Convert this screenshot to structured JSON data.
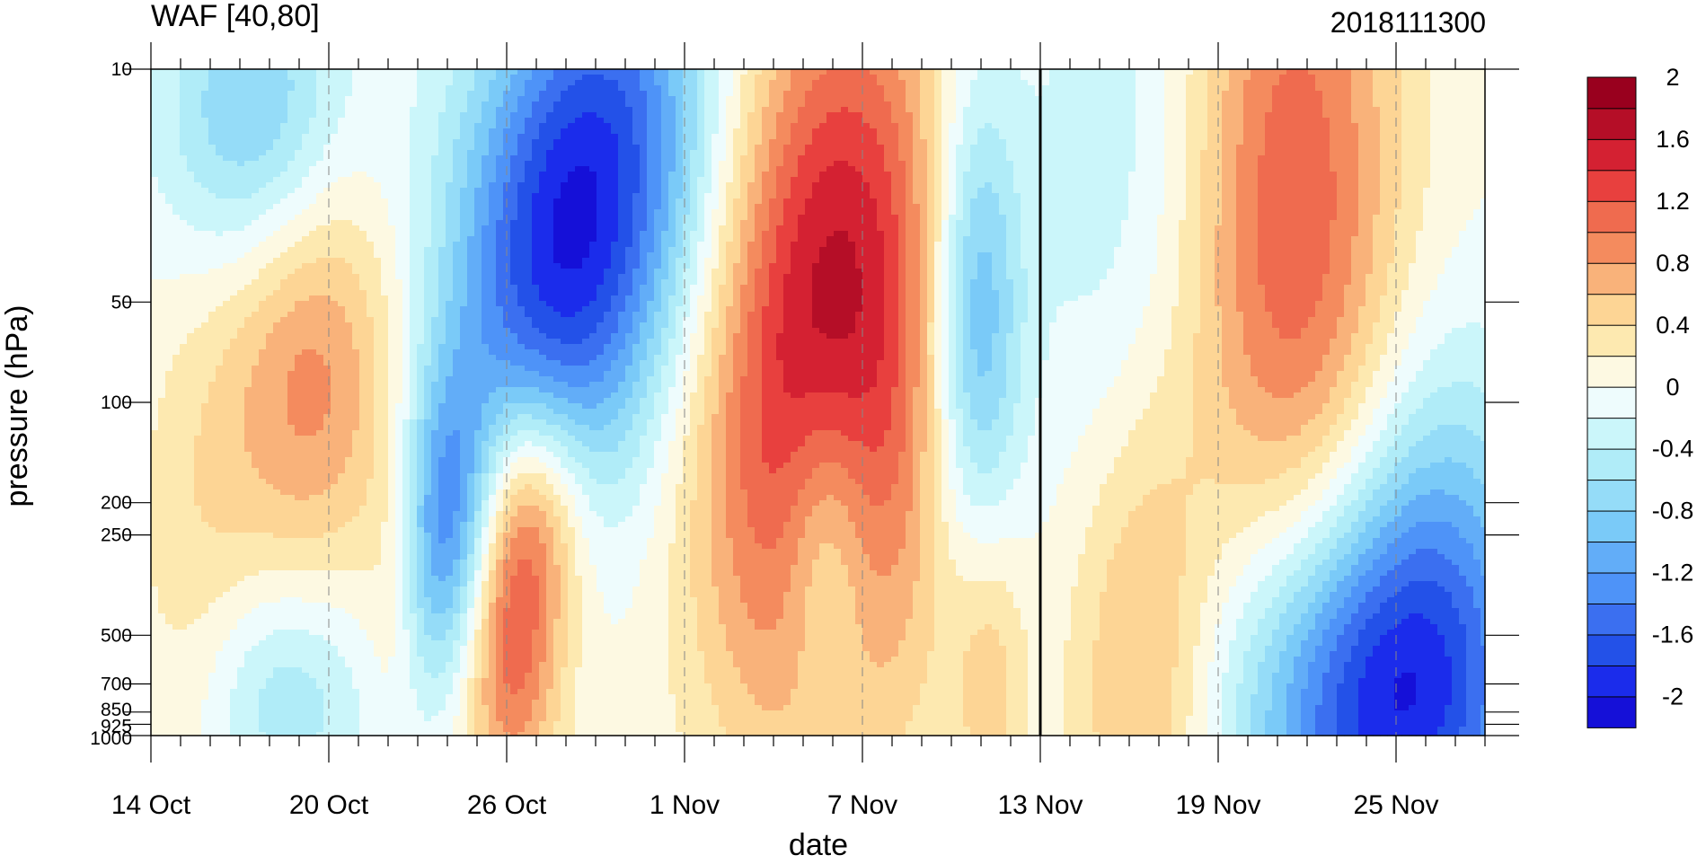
{
  "chart_data": {
    "type": "heatmap",
    "title_left": "WAF [40,80]",
    "title_right": "2018111300",
    "xlabel": "date",
    "ylabel": "pressure (hPa)",
    "x_ticks": [
      {
        "day": 0,
        "label": "14 Oct"
      },
      {
        "day": 6,
        "label": "20 Oct"
      },
      {
        "day": 12,
        "label": "26 Oct"
      },
      {
        "day": 18,
        "label": "1 Nov"
      },
      {
        "day": 24,
        "label": "7 Nov"
      },
      {
        "day": 30,
        "label": "13 Nov"
      },
      {
        "day": 36,
        "label": "19 Nov"
      },
      {
        "day": 42,
        "label": "25 Nov"
      }
    ],
    "x_range_days": [
      0,
      45
    ],
    "y_ticks": [
      {
        "p": 10,
        "label": "10"
      },
      {
        "p": 50,
        "label": "50"
      },
      {
        "p": 100,
        "label": "100"
      },
      {
        "p": 200,
        "label": "200"
      },
      {
        "p": 250,
        "label": "250"
      },
      {
        "p": 500,
        "label": "500"
      },
      {
        "p": 700,
        "label": "700"
      },
      {
        "p": 850,
        "label": "850"
      },
      {
        "p": 925,
        "label": "925"
      },
      {
        "p": 1000,
        "label": "1000"
      }
    ],
    "y_range": [
      1000,
      10
    ],
    "y_scale": "log",
    "vertical_marker_day": 30,
    "colorbar": {
      "colors": [
        "#1510d8",
        "#1b2ceb",
        "#2351e8",
        "#3b6ff0",
        "#4e93f8",
        "#62adf8",
        "#7acaf8",
        "#95dcf8",
        "#b0ecf8",
        "#cbf6fa",
        "#eefcfd",
        "#fdf9e2",
        "#fde9b0",
        "#fdd595",
        "#f9b27a",
        "#f48b5e",
        "#ef6b4f",
        "#e8403e",
        "#d42132",
        "#b50e27",
        "#99001e"
      ],
      "labels": [
        {
          "level": 2,
          "label": "2"
        },
        {
          "level": 1.6,
          "label": "1.6"
        },
        {
          "level": 1.2,
          "label": "1.2"
        },
        {
          "level": 0.8,
          "label": "0.8"
        },
        {
          "level": 0.4,
          "label": "0.4"
        },
        {
          "level": 0,
          "label": "0"
        },
        {
          "level": -0.4,
          "label": "-0.4"
        },
        {
          "level": -0.8,
          "label": "-0.8"
        },
        {
          "level": -1.2,
          "label": "-1.2"
        },
        {
          "level": -1.6,
          "label": "-1.6"
        },
        {
          "level": -2,
          "label": "-2"
        }
      ],
      "range": [
        -2.2,
        2.2
      ],
      "step": 0.2
    },
    "features": [
      {
        "day": 1.5,
        "p": 300,
        "v": 0.3,
        "sday": 1.6,
        "sp": 0.55
      },
      {
        "day": 5.4,
        "p": 80,
        "v": 0.9,
        "sday": 2.2,
        "sp": 0.45
      },
      {
        "day": 3.5,
        "p": 14,
        "v": -0.9,
        "sday": 2.2,
        "sp": 0.35
      },
      {
        "day": 4.5,
        "p": 760,
        "v": -0.6,
        "sday": 2.0,
        "sp": 0.25
      },
      {
        "day": 8.2,
        "p": 350,
        "v": 0.3,
        "sday": 0.7,
        "sp": 0.35
      },
      {
        "day": 10.1,
        "p": 250,
        "v": -1.4,
        "sday": 1.2,
        "sp": 0.35
      },
      {
        "day": 12.0,
        "p": 500,
        "v": 1.3,
        "sday": 1.3,
        "sp": 0.35
      },
      {
        "day": 13.0,
        "p": 200,
        "v": 0.8,
        "sday": 1.3,
        "sp": 0.25
      },
      {
        "day": 13.4,
        "p": 45,
        "v": -1.5,
        "sday": 2.6,
        "sp": 0.5
      },
      {
        "day": 16.0,
        "p": 14,
        "v": -1.2,
        "sday": 2.6,
        "sp": 0.5
      },
      {
        "day": 22.4,
        "p": 110,
        "v": 1.5,
        "sday": 3.0,
        "sp": 0.75
      },
      {
        "day": 24.0,
        "p": 20,
        "v": 0.6,
        "sday": 2.5,
        "sp": 0.6
      },
      {
        "day": 22.8,
        "p": 260,
        "v": -0.8,
        "sday": 1.1,
        "sp": 0.35
      },
      {
        "day": 27.8,
        "p": 55,
        "v": -1.2,
        "sday": 1.1,
        "sp": 0.5
      },
      {
        "day": 28.3,
        "p": 650,
        "v": 0.5,
        "sday": 0.9,
        "sp": 0.35
      },
      {
        "day": 33.4,
        "p": 580,
        "v": 0.9,
        "sday": 1.9,
        "sp": 0.6
      },
      {
        "day": 32.8,
        "p": 40,
        "v": -0.4,
        "sday": 2.6,
        "sp": 1.1
      },
      {
        "day": 38.5,
        "p": 30,
        "v": 1.2,
        "sday": 2.6,
        "sp": 0.9
      },
      {
        "day": 41.5,
        "p": 800,
        "v": -2.0,
        "sday": 3.6,
        "sp": 0.45
      },
      {
        "day": 43.5,
        "p": 200,
        "v": -0.5,
        "sday": 2.2,
        "sp": 0.45
      }
    ]
  }
}
